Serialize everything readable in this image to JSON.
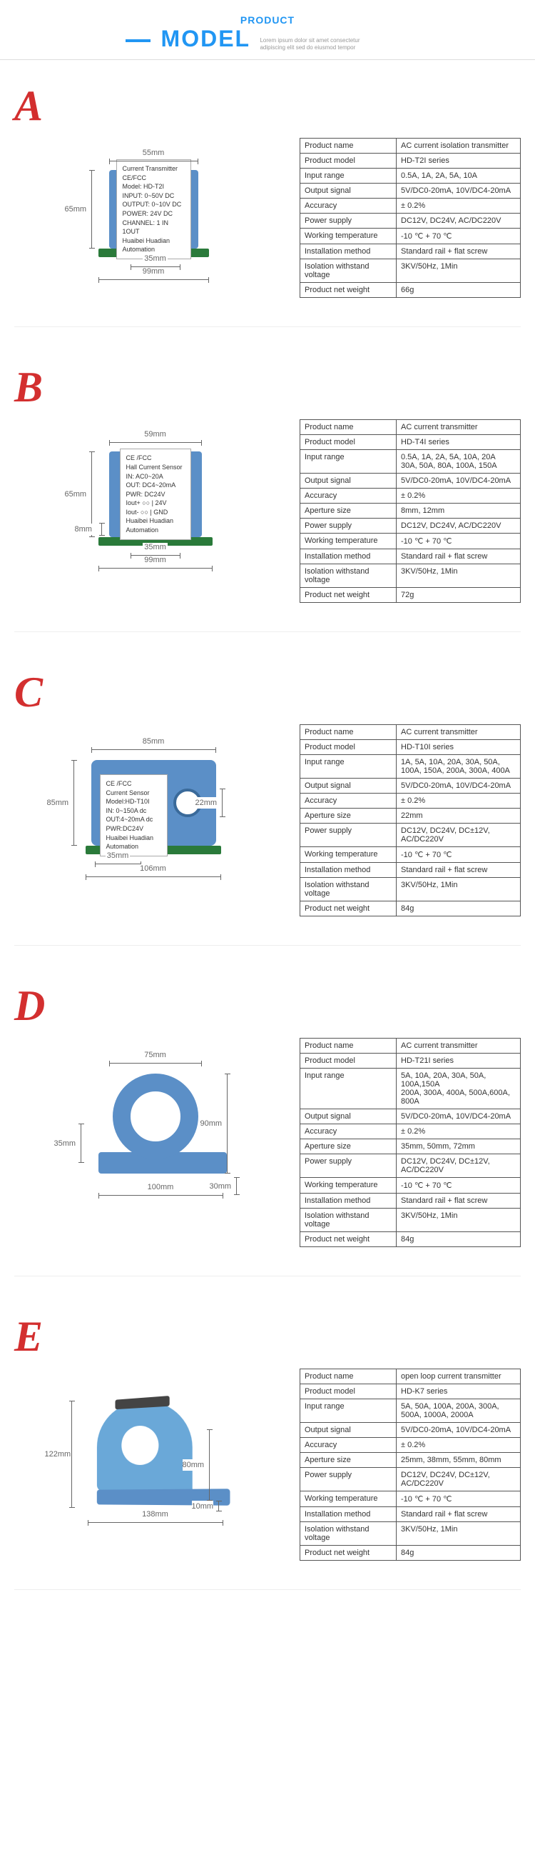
{
  "header": {
    "subtitle": "PRODUCT",
    "title": "MODEL",
    "desc": "Lorem ipsum dolor sit amet consectetur adipiscing elit sed do eiusmod tempor"
  },
  "products": [
    {
      "letter": "A",
      "dims": {
        "top": "55mm",
        "left": "65mm",
        "bot1": "35mm",
        "bot2": "99mm"
      },
      "label_lines": [
        "Current Transmitter    CE/FCC",
        "Model: HD-T2I",
        "INPUT: 0~50V DC",
        "OUTPUT: 0~10V DC",
        "POWER: 24V DC",
        "CHANNEL: 1 IN 1OUT",
        "Huaibei Huadian Automation"
      ],
      "specs": [
        [
          "Product name",
          "AC current isolation transmitter"
        ],
        [
          "Product model",
          "HD-T2I series"
        ],
        [
          "Input range",
          "0.5A, 1A, 2A, 5A, 10A"
        ],
        [
          "Output signal",
          "5V/DC0-20mA, 10V/DC4-20mA"
        ],
        [
          "Accuracy",
          "± 0.2%"
        ],
        [
          "Power supply",
          "DC12V, DC24V, AC/DC220V"
        ],
        [
          "Working temperature",
          "-10 ℃ + 70 ℃"
        ],
        [
          "Installation method",
          "Standard rail + flat screw"
        ],
        [
          "Isolation withstand voltage",
          "3KV/50Hz, 1Min"
        ],
        [
          "Product net weight",
          "66g"
        ]
      ]
    },
    {
      "letter": "B",
      "dims": {
        "top": "59mm",
        "left": "65mm",
        "leftsmall": "8mm",
        "bot1": "35mm",
        "bot2": "99mm"
      },
      "label_lines": [
        "CE /FCC",
        "Hall Current Sensor",
        "IN: AC0~20A",
        "OUT: DC4~20mA",
        "PWR: DC24V",
        "Iout+ ○○ | 24V",
        "Iout- ○○ | GND",
        "Huaibei Huadian Automation"
      ],
      "specs": [
        [
          "Product name",
          "AC current transmitter"
        ],
        [
          "Product model",
          "HD-T4I series"
        ],
        [
          "Input range",
          "0.5A, 1A, 2A, 5A, 10A, 20A\n30A, 50A, 80A, 100A, 150A"
        ],
        [
          "Output signal",
          "5V/DC0-20mA, 10V/DC4-20mA"
        ],
        [
          "Accuracy",
          "± 0.2%"
        ],
        [
          "Aperture size",
          "8mm, 12mm"
        ],
        [
          "Power supply",
          "DC12V, DC24V, AC/DC220V"
        ],
        [
          "Working temperature",
          "-10 ℃ + 70 ℃"
        ],
        [
          "Installation method",
          "Standard rail + flat screw"
        ],
        [
          "Isolation withstand voltage",
          "3KV/50Hz, 1Min"
        ],
        [
          "Product net weight",
          "72g"
        ]
      ]
    },
    {
      "letter": "C",
      "dims": {
        "top": "85mm",
        "left": "85mm",
        "right": "22mm",
        "bot1": "35mm",
        "bot2": "106mm"
      },
      "label_lines": [
        "CE /FCC",
        "Current Sensor",
        "Model:HD-T10I",
        "IN: 0~150A dc",
        "OUT:4~20mA dc",
        "PWR:DC24V",
        "Huaibei Huadian Automation"
      ],
      "specs": [
        [
          "Product name",
          "AC current transmitter"
        ],
        [
          "Product model",
          "HD-T10I series"
        ],
        [
          "Input range",
          "1A, 5A, 10A, 20A, 30A, 50A,\n100A, 150A, 200A, 300A, 400A"
        ],
        [
          "Output signal",
          "5V/DC0-20mA, 10V/DC4-20mA"
        ],
        [
          "Accuracy",
          "± 0.2%"
        ],
        [
          "Aperture size",
          "22mm"
        ],
        [
          "Power supply",
          "DC12V, DC24V, DC±12V,\nAC/DC220V"
        ],
        [
          "Working temperature",
          "-10 ℃ + 70 ℃"
        ],
        [
          "Installation method",
          "Standard rail + flat screw"
        ],
        [
          "Isolation withstand voltage",
          "3KV/50Hz, 1Min"
        ],
        [
          "Product net weight",
          "84g"
        ]
      ]
    },
    {
      "letter": "D",
      "dims": {
        "top": "75mm",
        "left": "35mm",
        "right": "90mm",
        "rightsmall": "30mm",
        "bot": "100mm"
      },
      "specs": [
        [
          "Product name",
          "AC current transmitter"
        ],
        [
          "Product model",
          "HD-T21I series"
        ],
        [
          "Input range",
          "5A, 10A, 20A, 30A, 50A, 100A,150A\n200A, 300A, 400A, 500A,600A, 800A"
        ],
        [
          "Output signal",
          "5V/DC0-20mA, 10V/DC4-20mA"
        ],
        [
          "Accuracy",
          "± 0.2%"
        ],
        [
          "Aperture size",
          "35mm, 50mm, 72mm"
        ],
        [
          "Power supply",
          "DC12V, DC24V, DC±12V,\nAC/DC220V"
        ],
        [
          "Working temperature",
          "-10 ℃ + 70 ℃"
        ],
        [
          "Installation method",
          "Standard rail + flat screw"
        ],
        [
          "Isolation withstand voltage",
          "3KV/50Hz, 1Min"
        ],
        [
          "Product net weight",
          "84g"
        ]
      ]
    },
    {
      "letter": "E",
      "dims": {
        "left": "122mm",
        "right": "80mm",
        "rightsmall": "10mm",
        "bot": "138mm"
      },
      "specs": [
        [
          "Product name",
          "open loop current transmitter"
        ],
        [
          "Product model",
          "HD-K7 series"
        ],
        [
          "Input range",
          "5A, 50A, 100A, 200A, 300A,\n500A, 1000A, 2000A"
        ],
        [
          "Output signal",
          "5V/DC0-20mA, 10V/DC4-20mA"
        ],
        [
          "Accuracy",
          "± 0.2%"
        ],
        [
          "Aperture size",
          "25mm, 38mm, 55mm, 80mm"
        ],
        [
          "Power supply",
          "DC12V, DC24V, DC±12V,\nAC/DC220V"
        ],
        [
          "Working temperature",
          "-10 ℃ + 70 ℃"
        ],
        [
          "Installation method",
          "Standard rail + flat screw"
        ],
        [
          "Isolation withstand voltage",
          "3KV/50Hz, 1Min"
        ],
        [
          "Product net weight",
          "84g"
        ]
      ]
    }
  ]
}
